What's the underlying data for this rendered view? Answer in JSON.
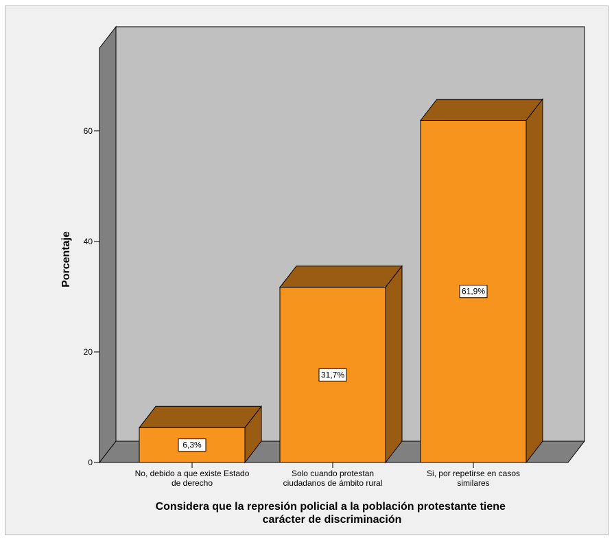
{
  "chart_data": {
    "type": "bar",
    "style": "3d",
    "categories": [
      [
        "No, debido a que existe Estado",
        "de derecho"
      ],
      [
        "Solo cuando protestan",
        "ciudadanos de ámbito rural"
      ],
      [
        "Si, por repetirse en casos",
        "similares"
      ]
    ],
    "values": [
      6.3,
      31.7,
      61.9
    ],
    "data_labels": [
      "6,3%",
      "31,7%",
      "61,9%"
    ],
    "title": "",
    "xlabel": [
      "Considera que la represión policial a la población protestante tiene",
      "carácter de discriminación"
    ],
    "ylabel": "Porcentaje",
    "ylim": [
      0,
      75
    ],
    "yticks": [
      0,
      20,
      40,
      60
    ],
    "grid": false,
    "legend": "none"
  },
  "colors": {
    "bar_front": "#f7941d",
    "bar_top": "#9a5b12",
    "bar_side": "#9a5b12",
    "back_wall": "#c0c0c0",
    "side_wall": "#808080",
    "floor": "#808080",
    "frame_bg": "#f0f0f0",
    "label_bg": "#ffffff"
  }
}
